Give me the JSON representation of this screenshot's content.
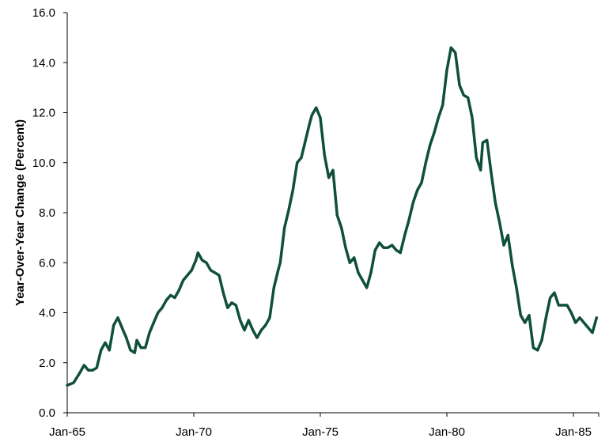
{
  "chart_data": {
    "type": "line",
    "title": "",
    "xlabel": "",
    "ylabel": "Year-Over-Year Change (Percent)",
    "ylim": [
      0,
      16
    ],
    "xlim": [
      "1965-01",
      "1986-01"
    ],
    "yticks": [
      "0.0",
      "2.0",
      "4.0",
      "6.0",
      "8.0",
      "10.0",
      "12.0",
      "14.0",
      "16.0"
    ],
    "xticks": [
      {
        "label": "Jan-65",
        "date": "1965-01"
      },
      {
        "label": "Jan-70",
        "date": "1970-01"
      },
      {
        "label": "Jan-75",
        "date": "1975-01"
      },
      {
        "label": "Jan-80",
        "date": "1980-01"
      },
      {
        "label": "Jan-85",
        "date": "1985-01"
      }
    ],
    "grid": false,
    "line_color": "#0f4f3c",
    "series": [
      {
        "points": [
          [
            "1965-01",
            1.1
          ],
          [
            "1965-04",
            1.2
          ],
          [
            "1965-07",
            1.6
          ],
          [
            "1965-09",
            1.9
          ],
          [
            "1965-11",
            1.7
          ],
          [
            "1966-01",
            1.7
          ],
          [
            "1966-03",
            1.8
          ],
          [
            "1966-05",
            2.5
          ],
          [
            "1966-07",
            2.8
          ],
          [
            "1966-09",
            2.5
          ],
          [
            "1966-11",
            3.5
          ],
          [
            "1967-01",
            3.8
          ],
          [
            "1967-03",
            3.4
          ],
          [
            "1967-05",
            3.0
          ],
          [
            "1967-07",
            2.5
          ],
          [
            "1967-09",
            2.4
          ],
          [
            "1967-10",
            2.9
          ],
          [
            "1967-12",
            2.6
          ],
          [
            "1968-02",
            2.6
          ],
          [
            "1968-04",
            3.2
          ],
          [
            "1968-06",
            3.6
          ],
          [
            "1968-08",
            4.0
          ],
          [
            "1968-10",
            4.2
          ],
          [
            "1968-12",
            4.5
          ],
          [
            "1969-02",
            4.7
          ],
          [
            "1969-04",
            4.6
          ],
          [
            "1969-06",
            4.9
          ],
          [
            "1969-08",
            5.3
          ],
          [
            "1969-10",
            5.5
          ],
          [
            "1969-12",
            5.7
          ],
          [
            "1970-02",
            6.1
          ],
          [
            "1970-03",
            6.4
          ],
          [
            "1970-05",
            6.1
          ],
          [
            "1970-07",
            6.0
          ],
          [
            "1970-09",
            5.7
          ],
          [
            "1970-11",
            5.6
          ],
          [
            "1971-01",
            5.5
          ],
          [
            "1971-03",
            4.8
          ],
          [
            "1971-05",
            4.2
          ],
          [
            "1971-07",
            4.4
          ],
          [
            "1971-09",
            4.3
          ],
          [
            "1971-11",
            3.7
          ],
          [
            "1972-01",
            3.3
          ],
          [
            "1972-03",
            3.7
          ],
          [
            "1972-05",
            3.3
          ],
          [
            "1972-07",
            3.0
          ],
          [
            "1972-09",
            3.3
          ],
          [
            "1972-11",
            3.5
          ],
          [
            "1973-01",
            3.8
          ],
          [
            "1973-03",
            5.0
          ],
          [
            "1973-05",
            5.7
          ],
          [
            "1973-06",
            6.0
          ],
          [
            "1973-08",
            7.4
          ],
          [
            "1973-10",
            8.1
          ],
          [
            "1973-12",
            8.9
          ],
          [
            "1974-02",
            10.0
          ],
          [
            "1974-04",
            10.2
          ],
          [
            "1974-06",
            10.9
          ],
          [
            "1974-08",
            11.6
          ],
          [
            "1974-09",
            11.9
          ],
          [
            "1974-11",
            12.2
          ],
          [
            "1975-01",
            11.8
          ],
          [
            "1975-03",
            10.3
          ],
          [
            "1975-05",
            9.4
          ],
          [
            "1975-07",
            9.7
          ],
          [
            "1975-09",
            7.9
          ],
          [
            "1975-11",
            7.4
          ],
          [
            "1976-01",
            6.6
          ],
          [
            "1976-03",
            6.0
          ],
          [
            "1976-05",
            6.2
          ],
          [
            "1976-07",
            5.6
          ],
          [
            "1976-09",
            5.3
          ],
          [
            "1976-11",
            5.0
          ],
          [
            "1977-01",
            5.6
          ],
          [
            "1977-03",
            6.5
          ],
          [
            "1977-05",
            6.8
          ],
          [
            "1977-07",
            6.6
          ],
          [
            "1977-09",
            6.6
          ],
          [
            "1977-11",
            6.7
          ],
          [
            "1978-01",
            6.5
          ],
          [
            "1978-03",
            6.4
          ],
          [
            "1978-05",
            7.1
          ],
          [
            "1978-07",
            7.7
          ],
          [
            "1978-09",
            8.4
          ],
          [
            "1978-11",
            8.9
          ],
          [
            "1979-01",
            9.2
          ],
          [
            "1979-03",
            10.0
          ],
          [
            "1979-05",
            10.7
          ],
          [
            "1979-07",
            11.2
          ],
          [
            "1979-09",
            11.8
          ],
          [
            "1979-11",
            12.3
          ],
          [
            "1980-01",
            13.7
          ],
          [
            "1980-03",
            14.6
          ],
          [
            "1980-05",
            14.4
          ],
          [
            "1980-07",
            13.1
          ],
          [
            "1980-09",
            12.7
          ],
          [
            "1980-11",
            12.6
          ],
          [
            "1981-01",
            11.8
          ],
          [
            "1981-03",
            10.2
          ],
          [
            "1981-05",
            9.7
          ],
          [
            "1981-06",
            10.8
          ],
          [
            "1981-08",
            10.9
          ],
          [
            "1981-10",
            9.6
          ],
          [
            "1981-12",
            8.4
          ],
          [
            "1982-02",
            7.6
          ],
          [
            "1982-04",
            6.7
          ],
          [
            "1982-06",
            7.1
          ],
          [
            "1982-08",
            5.9
          ],
          [
            "1982-10",
            5.0
          ],
          [
            "1982-12",
            3.9
          ],
          [
            "1983-02",
            3.6
          ],
          [
            "1983-04",
            3.9
          ],
          [
            "1983-06",
            2.6
          ],
          [
            "1983-08",
            2.5
          ],
          [
            "1983-10",
            2.9
          ],
          [
            "1983-12",
            3.8
          ],
          [
            "1984-02",
            4.6
          ],
          [
            "1984-04",
            4.8
          ],
          [
            "1984-06",
            4.3
          ],
          [
            "1984-08",
            4.3
          ],
          [
            "1984-10",
            4.3
          ],
          [
            "1984-12",
            4.0
          ],
          [
            "1985-02",
            3.6
          ],
          [
            "1985-04",
            3.8
          ],
          [
            "1985-06",
            3.6
          ],
          [
            "1985-08",
            3.4
          ],
          [
            "1985-10",
            3.2
          ],
          [
            "1985-12",
            3.8
          ]
        ]
      }
    ]
  }
}
